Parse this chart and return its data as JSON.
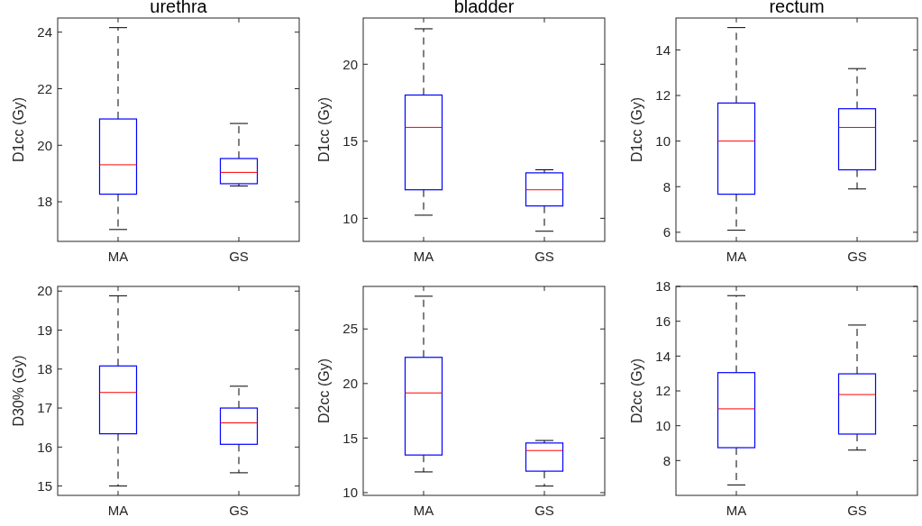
{
  "chart_data": [
    {
      "type": "box",
      "title": "urethra",
      "ylabel": "D1cc (Gy)",
      "categories": [
        "MA",
        "GS"
      ],
      "ylim": [
        16.6,
        24.5
      ],
      "yticks": [
        18,
        20,
        22,
        24
      ],
      "series": [
        {
          "color": "#0000ff",
          "boxes": [
            {
              "low": 17.02,
              "q1": 18.27,
              "median": 19.31,
              "q3": 20.93,
              "high": 24.16
            },
            {
              "low": 18.56,
              "q1": 18.64,
              "median": 19.04,
              "q3": 19.53,
              "high": 20.77
            }
          ]
        }
      ]
    },
    {
      "type": "box",
      "title": "bladder",
      "ylabel": "D1cc (Gy)",
      "categories": [
        "MA",
        "GS"
      ],
      "ylim": [
        8.5,
        23
      ],
      "yticks": [
        10,
        15,
        20
      ],
      "series": [
        {
          "color": "#0000ff",
          "boxes": [
            {
              "low": 10.2,
              "q1": 11.85,
              "median": 15.9,
              "q3": 18.0,
              "high": 22.3
            },
            {
              "low": 9.16,
              "q1": 10.8,
              "median": 11.85,
              "q3": 12.95,
              "high": 13.15
            }
          ]
        }
      ]
    },
    {
      "type": "box",
      "title": "rectum",
      "ylabel": "D1cc (Gy)",
      "categories": [
        "MA",
        "GS"
      ],
      "ylim": [
        5.6,
        15.4
      ],
      "yticks": [
        6,
        8,
        10,
        12,
        14
      ],
      "series": [
        {
          "color": "#0000ff",
          "boxes": [
            {
              "low": 6.09,
              "q1": 7.67,
              "median": 10.0,
              "q3": 11.67,
              "high": 14.98
            },
            {
              "low": 7.9,
              "q1": 8.74,
              "median": 10.6,
              "q3": 11.42,
              "high": 13.18
            }
          ]
        }
      ]
    },
    {
      "type": "box",
      "ylabel": "D30% (Gy)",
      "categories": [
        "MA",
        "GS"
      ],
      "ylim": [
        14.76,
        20.12
      ],
      "yticks": [
        15,
        16,
        17,
        18,
        19,
        20
      ],
      "series": [
        {
          "color": "#0000ff",
          "boxes": [
            {
              "low": 15.0,
              "q1": 16.34,
              "median": 17.4,
              "q3": 18.08,
              "high": 19.88
            },
            {
              "low": 15.34,
              "q1": 16.07,
              "median": 16.62,
              "q3": 17.0,
              "high": 17.56
            }
          ]
        }
      ]
    },
    {
      "type": "box",
      "ylabel": "D2cc (Gy)",
      "categories": [
        "MA",
        "GS"
      ],
      "ylim": [
        9.75,
        28.9
      ],
      "yticks": [
        10,
        15,
        20,
        25
      ],
      "series": [
        {
          "color": "#0000ff",
          "boxes": [
            {
              "low": 11.9,
              "q1": 13.45,
              "median": 19.14,
              "q3": 22.4,
              "high": 28.0
            },
            {
              "low": 10.6,
              "q1": 11.97,
              "median": 13.86,
              "q3": 14.55,
              "high": 14.78
            }
          ]
        }
      ]
    },
    {
      "type": "box",
      "ylabel": "D2cc (Gy)",
      "categories": [
        "MA",
        "GS"
      ],
      "ylim": [
        6,
        18
      ],
      "yticks": [
        8,
        10,
        12,
        14,
        16,
        18
      ],
      "series": [
        {
          "color": "#0000ff",
          "boxes": [
            {
              "low": 6.6,
              "q1": 8.74,
              "median": 10.97,
              "q3": 13.05,
              "high": 17.47
            },
            {
              "low": 8.6,
              "q1": 9.52,
              "median": 11.79,
              "q3": 12.98,
              "high": 15.78
            }
          ]
        }
      ]
    }
  ]
}
